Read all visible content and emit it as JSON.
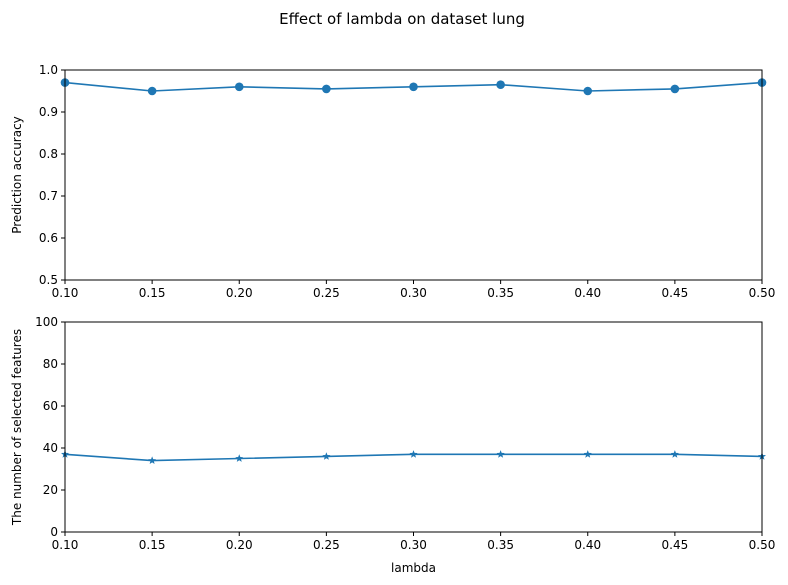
{
  "figure": {
    "suptitle": "Effect of lambda on dataset lung"
  },
  "chart_data": [
    {
      "type": "line",
      "title": "",
      "xlabel": "",
      "ylabel": "Prediction accuracy",
      "xlim": [
        0.1,
        0.5
      ],
      "ylim": [
        0.5,
        1.0
      ],
      "xticks": [
        0.1,
        0.15,
        0.2,
        0.25,
        0.3,
        0.35,
        0.4,
        0.45,
        0.5
      ],
      "xtick_labels": [
        "0.10",
        "0.15",
        "0.20",
        "0.25",
        "0.30",
        "0.35",
        "0.40",
        "0.45",
        "0.50"
      ],
      "yticks": [
        0.5,
        0.6,
        0.7,
        0.8,
        0.9,
        1.0
      ],
      "ytick_labels": [
        "0.5",
        "0.6",
        "0.7",
        "0.8",
        "0.9",
        "1.0"
      ],
      "marker": "circle",
      "color": "#1f77b4",
      "grid": false,
      "series": [
        {
          "x": [
            0.1,
            0.15,
            0.2,
            0.25,
            0.3,
            0.35,
            0.4,
            0.45,
            0.5
          ],
          "values": [
            0.97,
            0.95,
            0.96,
            0.955,
            0.96,
            0.965,
            0.95,
            0.955,
            0.97
          ]
        }
      ]
    },
    {
      "type": "line",
      "title": "",
      "xlabel": "lambda",
      "ylabel": "The number of selected features",
      "xlim": [
        0.1,
        0.5
      ],
      "ylim": [
        0,
        100
      ],
      "xticks": [
        0.1,
        0.15,
        0.2,
        0.25,
        0.3,
        0.35,
        0.4,
        0.45,
        0.5
      ],
      "xtick_labels": [
        "0.10",
        "0.15",
        "0.20",
        "0.25",
        "0.30",
        "0.35",
        "0.40",
        "0.45",
        "0.50"
      ],
      "yticks": [
        0,
        20,
        40,
        60,
        80,
        100
      ],
      "ytick_labels": [
        "0",
        "20",
        "40",
        "60",
        "80",
        "100"
      ],
      "marker": "star",
      "color": "#1f77b4",
      "grid": false,
      "series": [
        {
          "x": [
            0.1,
            0.15,
            0.2,
            0.25,
            0.3,
            0.35,
            0.4,
            0.45,
            0.5
          ],
          "values": [
            37,
            34,
            35,
            36,
            37,
            37,
            37,
            37,
            36
          ]
        }
      ]
    }
  ]
}
